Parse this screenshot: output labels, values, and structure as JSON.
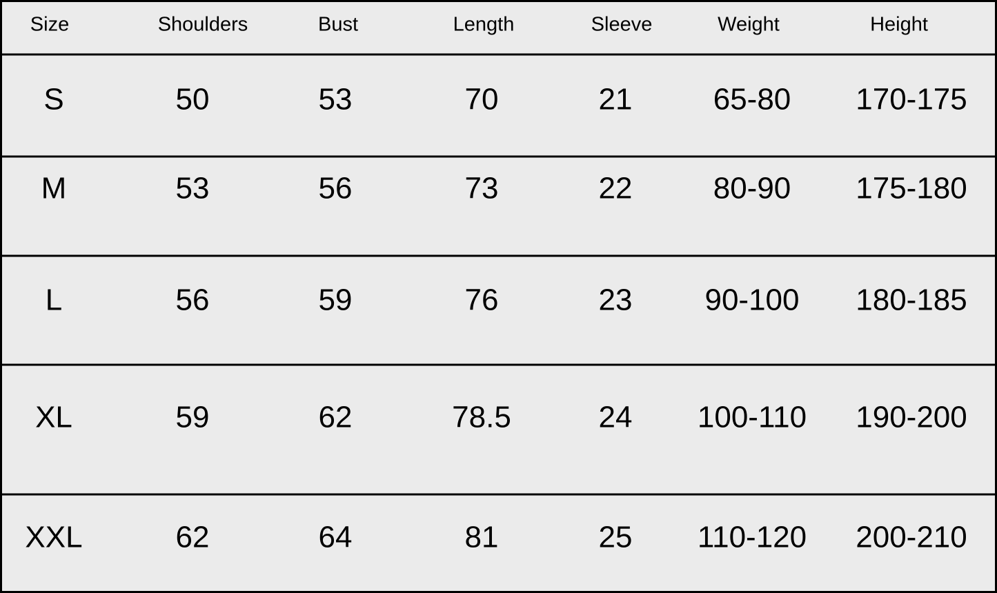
{
  "table": {
    "header": [
      "Size",
      "Shoulders",
      "Bust",
      "Length",
      "Sleeve",
      "Weight",
      "Height"
    ],
    "rows": [
      [
        "S",
        50,
        53,
        70,
        21,
        "65-80",
        "170-175"
      ],
      [
        "M",
        53,
        56,
        73,
        22,
        "80-90",
        "175-180"
      ],
      [
        "L",
        56,
        59,
        76,
        23,
        "90-100",
        "180-185"
      ],
      [
        "XL",
        59,
        62,
        78.5,
        24,
        "100-110",
        "190-200"
      ],
      [
        "XXL",
        62,
        64,
        81,
        25,
        "110-120",
        "200-210"
      ]
    ]
  }
}
